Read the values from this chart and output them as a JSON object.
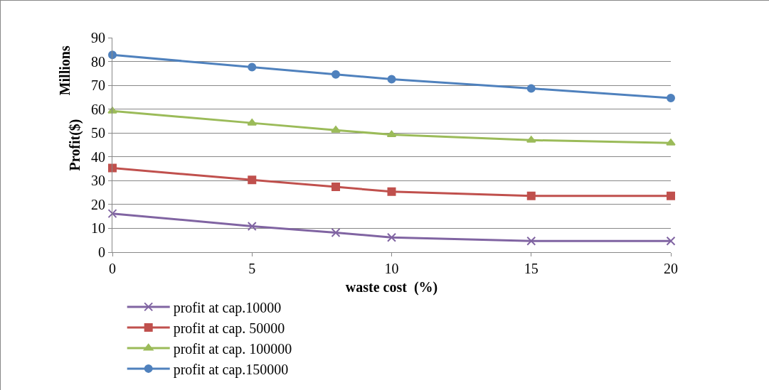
{
  "chart_data": {
    "type": "line",
    "xlabel": "waste cost  (%)",
    "ylabel": "Profit($)",
    "annotations": [
      "Millions"
    ],
    "x": [
      0,
      5,
      8,
      10,
      15,
      20
    ],
    "xlim": [
      0,
      20
    ],
    "xticks": [
      0,
      5,
      10,
      15,
      20
    ],
    "ylim": [
      0,
      90
    ],
    "yticks": [
      0,
      10,
      20,
      30,
      40,
      50,
      60,
      70,
      80,
      90
    ],
    "grid": "y",
    "legend": "bottom",
    "line_style": "solid",
    "series": [
      {
        "name": "profit at cap.10000",
        "color": "#8064a2",
        "marker": "cross",
        "values": [
          16.2,
          10.9,
          8.2,
          6.2,
          4.7,
          4.7
        ]
      },
      {
        "name": "profit at cap. 50000",
        "color": "#c0504d",
        "marker": "square",
        "values": [
          35.3,
          30.3,
          27.4,
          25.4,
          23.6,
          23.6
        ]
      },
      {
        "name": "profit at cap. 100000",
        "color": "#9bbb59",
        "marker": "triangle",
        "values": [
          59.2,
          54.2,
          51.2,
          49.3,
          47.0,
          45.8
        ]
      },
      {
        "name": "profit at cap.150000",
        "color": "#4f81bd",
        "marker": "circle",
        "values": [
          82.8,
          77.6,
          74.6,
          72.6,
          68.7,
          64.7
        ]
      }
    ]
  }
}
